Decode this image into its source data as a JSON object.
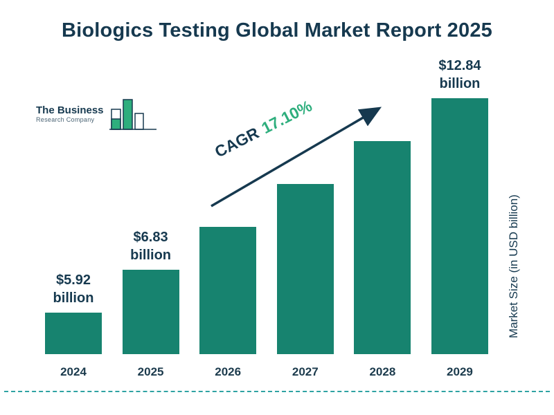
{
  "page": {
    "title": "Biologics Testing Global Market Report 2025"
  },
  "logo": {
    "line1": "The Business",
    "line2": "Research Company"
  },
  "annotation": {
    "cagr_label": "CAGR",
    "cagr_value": "17.10%"
  },
  "axis": {
    "y_label": "Market Size (in USD billion)"
  },
  "chart_data": {
    "type": "bar",
    "title": "Biologics Testing Global Market Report 2025",
    "categories": [
      "2024",
      "2025",
      "2026",
      "2027",
      "2028",
      "2029"
    ],
    "values": [
      5.92,
      6.83,
      8.0,
      9.37,
      10.97,
      12.84
    ],
    "unit": "USD billion",
    "ylabel": "Market Size (in USD billion)",
    "cagr_percent": 17.1,
    "value_labels": {
      "2024": {
        "amount": "$5.92",
        "unit": "billion"
      },
      "2025": {
        "amount": "$6.83",
        "unit": "billion"
      },
      "2029": {
        "amount": "$12.84",
        "unit": "billion"
      }
    },
    "colors": {
      "bar": "#17836F",
      "accent_green": "#2EAE7D",
      "navy": "#16394F",
      "dashed_rule": "#2FA3A3"
    },
    "legend_position": "none",
    "grid": false
  }
}
